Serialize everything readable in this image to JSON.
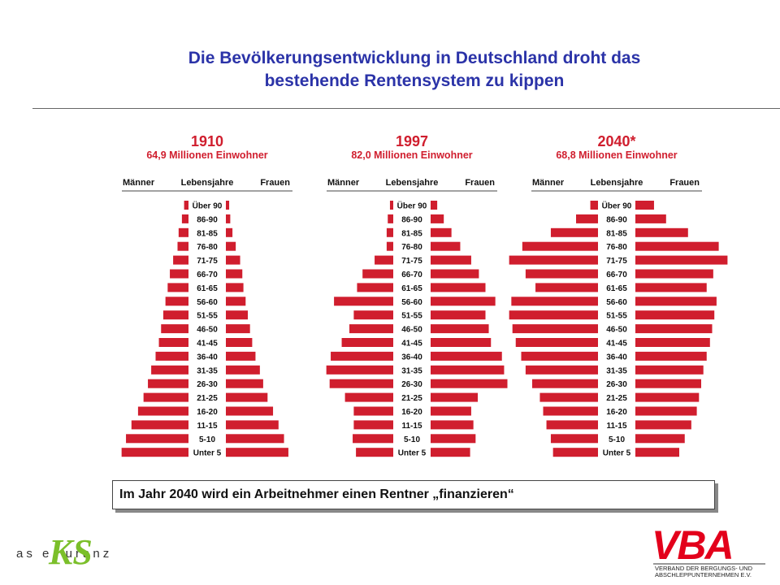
{
  "title": {
    "line1": "Die Bevölkerungsentwicklung in Deutschland droht das",
    "line2": "bestehende Rentensystem zu kippen"
  },
  "chart_data": [
    {
      "type": "bar",
      "title": "1910",
      "subtitle": "64,9 Millionen Einwohner",
      "header_left": "Männer",
      "header_center": "Lebensjahre",
      "header_right": "Frauen",
      "categories": [
        "Über 90",
        "86-90",
        "81-85",
        "76-80",
        "71-75",
        "66-70",
        "61-65",
        "56-60",
        "51-55",
        "46-50",
        "41-45",
        "36-40",
        "31-35",
        "26-30",
        "21-25",
        "16-20",
        "11-15",
        "5-10",
        "Unter 5"
      ],
      "series": [
        {
          "name": "Männer",
          "values": [
            4,
            6,
            9,
            10,
            14,
            17,
            19,
            21,
            23,
            25,
            27,
            30,
            34,
            37,
            41,
            46,
            52,
            57,
            61
          ]
        },
        {
          "name": "Frauen",
          "values": [
            3,
            4,
            6,
            9,
            13,
            15,
            16,
            18,
            20,
            22,
            24,
            27,
            31,
            34,
            38,
            43,
            48,
            53,
            57
          ]
        }
      ],
      "colors": {
        "bar": "#d01e2e"
      }
    },
    {
      "type": "bar",
      "title": "1997",
      "subtitle": "82,0 Millionen Einwohner",
      "header_left": "Männer",
      "header_center": "Lebensjahre",
      "header_right": "Frauen",
      "categories": [
        "Über 90",
        "86-90",
        "81-85",
        "76-80",
        "71-75",
        "66-70",
        "61-65",
        "56-60",
        "51-55",
        "46-50",
        "41-45",
        "36-40",
        "31-35",
        "26-30",
        "21-25",
        "16-20",
        "11-15",
        "5-10",
        "Unter 5"
      ],
      "series": [
        {
          "name": "Männer",
          "values": [
            3,
            5,
            6,
            6,
            17,
            28,
            33,
            54,
            36,
            40,
            47,
            57,
            61,
            58,
            44,
            36,
            36,
            37,
            34
          ]
        },
        {
          "name": "Frauen",
          "values": [
            6,
            12,
            19,
            27,
            37,
            44,
            50,
            59,
            50,
            53,
            55,
            65,
            67,
            70,
            43,
            37,
            39,
            41,
            36
          ]
        }
      ],
      "colors": {
        "bar": "#d01e2e"
      }
    },
    {
      "type": "bar",
      "title": "2040*",
      "subtitle": "68,8 Millionen Einwohner",
      "header_left": "Männer",
      "header_center": "Lebensjahre",
      "header_right": "Frauen",
      "categories": [
        "Über 90",
        "86-90",
        "81-85",
        "76-80",
        "71-75",
        "66-70",
        "61-65",
        "56-60",
        "51-55",
        "46-50",
        "41-45",
        "36-40",
        "31-35",
        "26-30",
        "21-25",
        "16-20",
        "11-15",
        "5-10",
        "Unter 5"
      ],
      "series": [
        {
          "name": "Männer",
          "values": [
            7,
            20,
            43,
            69,
            81,
            66,
            57,
            79,
            81,
            78,
            75,
            70,
            66,
            60,
            53,
            50,
            47,
            43,
            41
          ]
        },
        {
          "name": "Frauen",
          "values": [
            17,
            28,
            48,
            76,
            84,
            71,
            65,
            74,
            72,
            70,
            68,
            65,
            62,
            60,
            58,
            56,
            51,
            45,
            40
          ]
        }
      ],
      "colors": {
        "bar": "#d01e2e"
      }
    }
  ],
  "banner": {
    "text": "Im Jahr 2040 wird ein Arbeitnehmer einen Rentner „finanzieren“"
  },
  "logo_left": {
    "text": "as e  uranz",
    "mark": "KS"
  },
  "logo_right": {
    "text": "VBA",
    "line1": "VERBAND DER BERGUNGS- UND",
    "line2": "ABSCHLEPPUNTERNEHMEN E.V."
  }
}
